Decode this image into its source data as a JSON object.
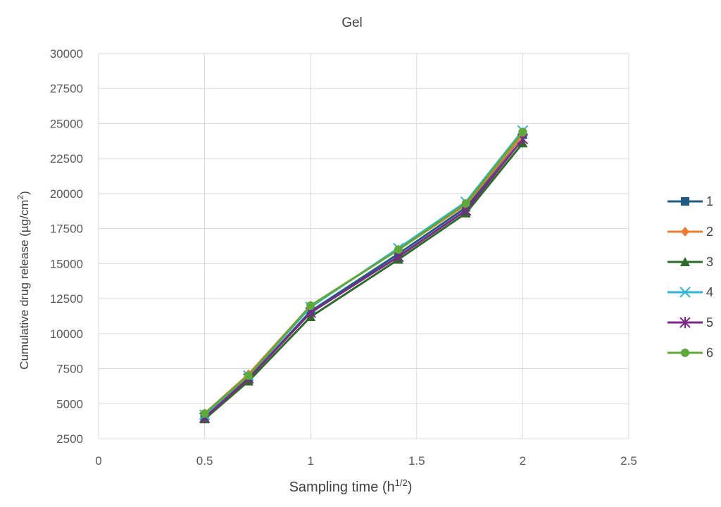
{
  "chart_data": {
    "type": "line",
    "title": "Gel",
    "xlabel": {
      "main": "Sampling time (",
      "base": "h",
      "sup": "1/2",
      "end": ")"
    },
    "ylabel": {
      "main": "Cumulative drug release  (µg/cm",
      "sup": "2",
      "end": ")"
    },
    "xlim": [
      0,
      2.5
    ],
    "ylim": [
      2500,
      30000
    ],
    "xticks": [
      0,
      0.5,
      1,
      1.5,
      2,
      2.5
    ],
    "xtick_labels": [
      "0",
      "0.5",
      "1",
      "1.5",
      "2",
      "2.5"
    ],
    "yticks": [
      2500,
      5000,
      7500,
      10000,
      12500,
      15000,
      17500,
      20000,
      22500,
      25000,
      27500,
      30000
    ],
    "ytick_labels": [
      "2500",
      "5000",
      "7500",
      "10000",
      "12500",
      "15000",
      "17500",
      "20000",
      "22500",
      "25000",
      "27500",
      "30000"
    ],
    "grid": true,
    "legend_position": "right",
    "x": [
      0.5,
      0.707,
      1,
      1.414,
      1.732,
      2
    ],
    "series": [
      {
        "name": "1",
        "color": "#1f5b82",
        "marker": "square",
        "values": [
          4000,
          6800,
          11600,
          15700,
          19000,
          24200
        ]
      },
      {
        "name": "2",
        "color": "#ed7d31",
        "marker": "diamond",
        "values": [
          4300,
          7100,
          12000,
          16000,
          19200,
          24200
        ]
      },
      {
        "name": "3",
        "color": "#2e6b2a",
        "marker": "triangle",
        "values": [
          3900,
          6600,
          11200,
          15300,
          18600,
          23600
        ]
      },
      {
        "name": "4",
        "color": "#2eb5d6",
        "marker": "x",
        "values": [
          4200,
          7000,
          11900,
          16100,
          19400,
          24500
        ]
      },
      {
        "name": "5",
        "color": "#7a2a86",
        "marker": "star",
        "values": [
          4000,
          6800,
          11500,
          15500,
          18800,
          23900
        ]
      },
      {
        "name": "6",
        "color": "#5fa83a",
        "marker": "circle",
        "values": [
          4300,
          7000,
          12000,
          16000,
          19300,
          24400
        ]
      }
    ]
  }
}
